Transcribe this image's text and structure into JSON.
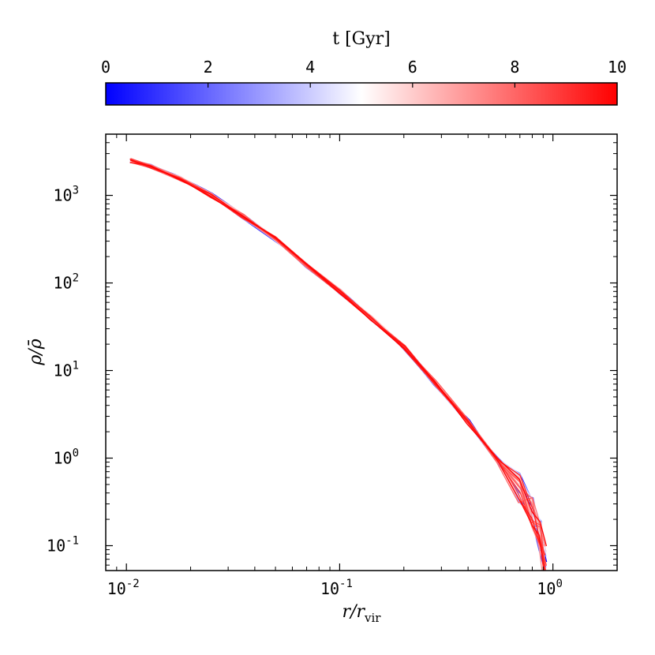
{
  "chart_data": {
    "type": "line",
    "xscale": "log",
    "yscale": "log",
    "xlim": [
      0.008,
      2
    ],
    "ylim": [
      0.052,
      5000
    ],
    "x_ticks": [
      {
        "value": 0.01,
        "base": "10",
        "exp": "-2"
      },
      {
        "value": 0.1,
        "base": "10",
        "exp": "-1"
      },
      {
        "value": 1,
        "base": "10",
        "exp": "0"
      }
    ],
    "y_ticks": [
      {
        "value": 0.1,
        "base": "10",
        "exp": "-1"
      },
      {
        "value": 1,
        "base": "10",
        "exp": "0"
      },
      {
        "value": 10,
        "base": "10",
        "exp": "1"
      },
      {
        "value": 100,
        "base": "10",
        "exp": "2"
      },
      {
        "value": 1000,
        "base": "10",
        "exp": "3"
      }
    ],
    "xlabel": {
      "main": "r/r",
      "sub": "vir"
    },
    "ylabel": "ρ/ρ̄",
    "colorbar": {
      "label": "t [Gyr]",
      "range": [
        0,
        10
      ],
      "ticks": [
        "0",
        "2",
        "4",
        "6",
        "8",
        "10"
      ],
      "colors": [
        "#0000ff",
        "#ffffff",
        "#ff0000"
      ]
    },
    "series_time_range_gyr": [
      0,
      10
    ],
    "series_count": 40,
    "base_profile": {
      "x": [
        0.0105,
        0.013,
        0.018,
        0.025,
        0.035,
        0.05,
        0.07,
        0.1,
        0.14,
        0.2,
        0.28,
        0.4,
        0.55,
        0.7,
        0.8,
        0.87,
        0.92
      ],
      "y": [
        2500,
        2150,
        1550,
        1000,
        580,
        320,
        160,
        80,
        40,
        18.5,
        7.2,
        2.6,
        0.95,
        0.45,
        0.24,
        0.13,
        0.085
      ]
    },
    "grid": false,
    "legend": "none"
  }
}
